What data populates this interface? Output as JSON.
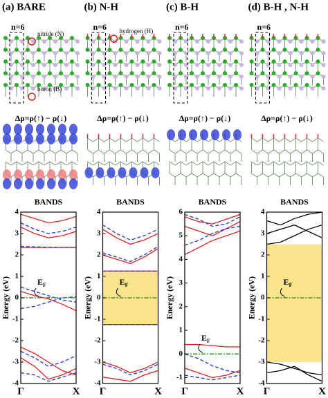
{
  "chart_data": [
    {
      "type": "band",
      "title": "(a) BARE",
      "cell_label": "n=6",
      "annotations": [
        "nitride (N)",
        "boron (B)"
      ],
      "density_label": "Δρ=ρ(↑) − ρ(↓)",
      "plot_title": "BANDS",
      "ylabel": "Energy (eV)",
      "fermi_label": {
        "main": "E",
        "sub": "F"
      },
      "fermi": 0,
      "xlim": [
        0,
        1
      ],
      "xticks": [
        {
          "value": 0,
          "label": "Γ"
        },
        {
          "value": 1,
          "label": "X"
        }
      ],
      "ylim": [
        -4,
        4
      ],
      "yticks": [
        -4,
        -3,
        -2,
        -1,
        0,
        1,
        2,
        3,
        4
      ],
      "x": [
        0,
        0.25,
        0.5,
        0.75,
        1
      ],
      "series": [
        {
          "color": "#e02020",
          "dash": false,
          "values": [
            2.35,
            2.35,
            2.35,
            2.35,
            2.35
          ]
        },
        {
          "color": "#e02020",
          "dash": false,
          "values": [
            3.3,
            3.0,
            2.8,
            2.9,
            3.1
          ]
        },
        {
          "color": "#e02020",
          "dash": false,
          "values": [
            3.9,
            3.7,
            3.5,
            3.6,
            3.8
          ]
        },
        {
          "color": "#e02020",
          "dash": false,
          "values": [
            0.3,
            0.1,
            -0.05,
            -0.3,
            -0.6
          ]
        },
        {
          "color": "#e02020",
          "dash": false,
          "values": [
            -2.3,
            -2.6,
            -3.0,
            -3.4,
            -3.6
          ]
        },
        {
          "color": "#e02020",
          "dash": false,
          "values": [
            -2.8,
            -3.2,
            -3.8,
            -3.6,
            -3.3
          ]
        },
        {
          "color": "#2030e0",
          "dash": true,
          "values": [
            2.4,
            2.38,
            2.36,
            2.35,
            2.35
          ]
        },
        {
          "color": "#2030e0",
          "dash": true,
          "values": [
            3.5,
            3.2,
            3.0,
            3.1,
            3.3
          ]
        },
        {
          "color": "#2030e0",
          "dash": true,
          "values": [
            0.5,
            0.3,
            0.1,
            -0.1,
            -0.2
          ]
        },
        {
          "color": "#2030e0",
          "dash": true,
          "values": [
            -0.5,
            -0.4,
            -0.2,
            0,
            0.05
          ]
        },
        {
          "color": "#2030e0",
          "dash": true,
          "values": [
            -2.5,
            -2.8,
            -3.2,
            -3.0,
            -2.7
          ]
        },
        {
          "color": "#2030e0",
          "dash": true,
          "values": [
            -3.5,
            -3.6,
            -3.9,
            -3.7,
            -3.5
          ]
        }
      ]
    },
    {
      "type": "band",
      "title": "(b) N-H",
      "cell_label": "n=6",
      "annotations": [
        "hydrogen (H)"
      ],
      "density_label": "Δρ=ρ(↑) − ρ(↓)",
      "plot_title": "BANDS",
      "ylabel": "Energy (eV)",
      "fermi_label": {
        "main": "E",
        "sub": "F"
      },
      "fermi": 0,
      "gap": [
        -1.25,
        1.25
      ],
      "xlim": [
        0,
        1
      ],
      "xticks": [
        {
          "value": 0,
          "label": "Γ"
        },
        {
          "value": 1,
          "label": "X"
        }
      ],
      "ylim": [
        -4,
        4
      ],
      "yticks": [
        -4,
        -3,
        -2,
        -1,
        0,
        1,
        2,
        3,
        4
      ],
      "x": [
        0,
        0.25,
        0.5,
        0.75,
        1
      ],
      "series": [
        {
          "color": "#e02020",
          "dash": false,
          "values": [
            1.25,
            1.25,
            1.25,
            1.25,
            1.25
          ]
        },
        {
          "color": "#e02020",
          "dash": false,
          "values": [
            -1.25,
            -1.25,
            -1.25,
            -1.25,
            -1.25
          ]
        },
        {
          "color": "#e02020",
          "dash": false,
          "values": [
            2.0,
            1.8,
            1.6,
            1.9,
            2.3
          ]
        },
        {
          "color": "#e02020",
          "dash": false,
          "values": [
            3.2,
            2.8,
            2.5,
            2.7,
            3.0
          ]
        },
        {
          "color": "#e02020",
          "dash": false,
          "values": [
            -3.0,
            -3.2,
            -3.5,
            -3.3,
            -3.0
          ]
        },
        {
          "color": "#e02020",
          "dash": false,
          "values": [
            -3.7,
            -3.8,
            -3.9,
            -3.6,
            -3.4
          ]
        },
        {
          "color": "#2030e0",
          "dash": true,
          "values": [
            1.25,
            1.25,
            1.25,
            1.25,
            1.25
          ]
        },
        {
          "color": "#2030e0",
          "dash": true,
          "values": [
            -1.25,
            -1.25,
            -1.25,
            -1.25,
            -1.25
          ]
        },
        {
          "color": "#2030e0",
          "dash": true,
          "values": [
            2.1,
            1.9,
            1.7,
            2.0,
            2.4
          ]
        },
        {
          "color": "#2030e0",
          "dash": true,
          "values": [
            3.4,
            3.0,
            2.7,
            2.9,
            3.2
          ]
        },
        {
          "color": "#2030e0",
          "dash": true,
          "values": [
            -3.1,
            -3.3,
            -3.6,
            -3.4,
            -3.1
          ]
        }
      ]
    },
    {
      "type": "band",
      "title": "(c) B-H",
      "cell_label": "n=6",
      "density_label": "Δρ=ρ(↑) − ρ(↓)",
      "plot_title": "BANDS",
      "ylabel": "Energy (eV)",
      "fermi_label": {
        "main": "E",
        "sub": "F"
      },
      "fermi": 0,
      "xlim": [
        0,
        1
      ],
      "xticks": [
        {
          "value": 0,
          "label": "Γ"
        },
        {
          "value": 1,
          "label": "X"
        }
      ],
      "ylim": [
        -1.25,
        6
      ],
      "yticks": [
        -1,
        0,
        1,
        2,
        3,
        4,
        5,
        6
      ],
      "x": [
        0,
        0.25,
        0.5,
        0.75,
        1
      ],
      "series": [
        {
          "color": "#e02020",
          "dash": false,
          "values": [
            0.4,
            0.4,
            0.35,
            0.3,
            0.3
          ]
        },
        {
          "color": "#e02020",
          "dash": false,
          "values": [
            -0.6,
            -0.8,
            -1.0,
            -0.9,
            -0.7
          ]
        },
        {
          "color": "#e02020",
          "dash": false,
          "values": [
            4.2,
            4.5,
            4.8,
            5.0,
            5.2
          ]
        },
        {
          "color": "#e02020",
          "dash": false,
          "values": [
            5.4,
            5.2,
            5.0,
            5.3,
            5.6
          ]
        },
        {
          "color": "#e02020",
          "dash": false,
          "values": [
            5.8,
            5.6,
            5.5,
            5.7,
            5.9
          ]
        },
        {
          "color": "#2030e0",
          "dash": true,
          "values": [
            0.0,
            -0.2,
            -0.5,
            -0.7,
            -0.8
          ]
        },
        {
          "color": "#2030e0",
          "dash": true,
          "values": [
            -0.9,
            -1.0,
            -1.1,
            -1.0,
            -0.9
          ]
        },
        {
          "color": "#2030e0",
          "dash": true,
          "values": [
            4.6,
            4.8,
            5.1,
            5.3,
            5.4
          ]
        },
        {
          "color": "#2030e0",
          "dash": true,
          "values": [
            5.9,
            5.7,
            5.4,
            5.5,
            5.8
          ]
        }
      ]
    },
    {
      "type": "band",
      "title": "(d) B-H , N-H",
      "cell_label": "n=6",
      "density_label": "Δρ=ρ(↑) − ρ(↓)",
      "plot_title": "BANDS",
      "ylabel": "Energy (eV)",
      "fermi_label": {
        "main": "E",
        "sub": "F"
      },
      "fermi": 0,
      "gap": [
        -3,
        2.5
      ],
      "xlim": [
        0,
        1
      ],
      "xticks": [
        {
          "value": 0,
          "label": "Γ"
        },
        {
          "value": 1,
          "label": "X"
        }
      ],
      "ylim": [
        -4,
        4
      ],
      "yticks": [
        -4,
        -3,
        -2,
        -1,
        0,
        1,
        2,
        3,
        4
      ],
      "x": [
        0,
        0.25,
        0.5,
        0.75,
        1
      ],
      "series": [
        {
          "color": "#000000",
          "dash": false,
          "values": [
            2.5,
            2.6,
            2.9,
            3.2,
            3.4
          ]
        },
        {
          "color": "#000000",
          "dash": false,
          "values": [
            3.0,
            3.2,
            3.4,
            3.1,
            2.8
          ]
        },
        {
          "color": "#000000",
          "dash": false,
          "values": [
            3.6,
            3.4,
            3.7,
            3.9,
            4.0
          ]
        },
        {
          "color": "#000000",
          "dash": false,
          "values": [
            -3.0,
            -3.1,
            -3.3,
            -3.5,
            -3.6
          ]
        },
        {
          "color": "#000000",
          "dash": false,
          "values": [
            -3.5,
            -3.4,
            -3.2,
            -3.6,
            -3.9
          ]
        }
      ]
    }
  ]
}
